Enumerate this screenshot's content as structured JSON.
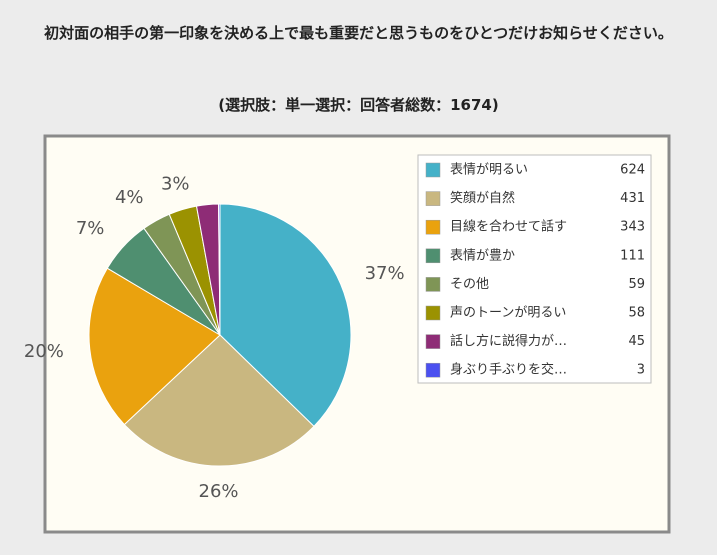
{
  "chart_data": {
    "type": "pie",
    "title": "初対面の相手の第一印象を決める上で最も重要だと思うものをひとつだけお知らせください。",
    "subtitle": "(選択肢：単一選択：回答者総数：1674)",
    "categories": [
      "表情が明るい",
      "笑顔が自然",
      "目線を合わせて話す",
      "表情が豊か",
      "その他",
      "声のトーンが明るい",
      "話し方に説得力が…",
      "身ぶり手ぶりを交…"
    ],
    "values": [
      624,
      431,
      343,
      111,
      59,
      58,
      45,
      3
    ],
    "value_labels": [
      "37%",
      "26%",
      "20%",
      "7%",
      "4%",
      "3%",
      null,
      null
    ],
    "colors": [
      "#45b1c8",
      "#c9b780",
      "#eaa20e",
      "#4f8f70",
      "#7f9556",
      "#9b9201",
      "#8e2c76",
      "#4b50f0"
    ],
    "legend": "right"
  }
}
